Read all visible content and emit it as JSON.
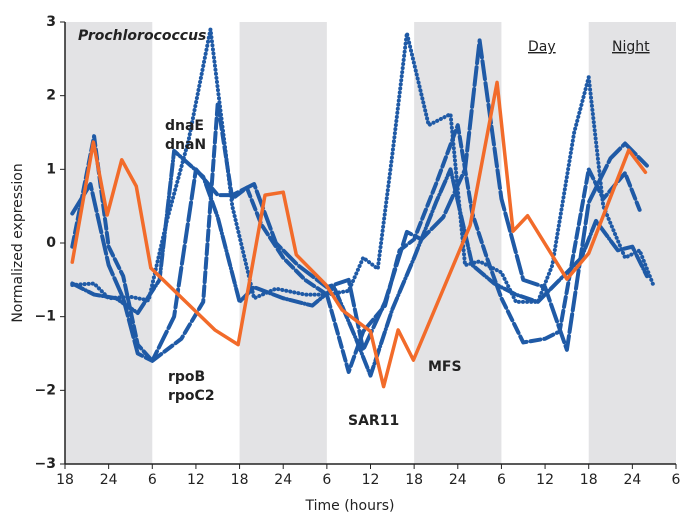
{
  "chart_data": {
    "type": "line",
    "xlabel": "Time (hours)",
    "ylabel": "Normalized expression",
    "xlim": [
      0,
      84
    ],
    "ylim": [
      -3,
      3
    ],
    "xticks": [
      {
        "value": 0,
        "label": "18"
      },
      {
        "value": 6,
        "label": "24"
      },
      {
        "value": 12,
        "label": "6"
      },
      {
        "value": 18,
        "label": "12"
      },
      {
        "value": 24,
        "label": "18"
      },
      {
        "value": 30,
        "label": "24"
      },
      {
        "value": 36,
        "label": "6"
      },
      {
        "value": 42,
        "label": "12"
      },
      {
        "value": 48,
        "label": "18"
      },
      {
        "value": 54,
        "label": "24"
      },
      {
        "value": 60,
        "label": "6"
      },
      {
        "value": 66,
        "label": "12"
      },
      {
        "value": 72,
        "label": "18"
      },
      {
        "value": 78,
        "label": "24"
      },
      {
        "value": 84,
        "label": "6"
      }
    ],
    "yticks": [
      {
        "value": -3,
        "label": "−3"
      },
      {
        "value": -2,
        "label": "−2"
      },
      {
        "value": -1,
        "label": "−1"
      },
      0,
      1,
      2,
      3
    ],
    "shaded_regions": [
      [
        0,
        12
      ],
      [
        24,
        36
      ],
      [
        48,
        60
      ],
      [
        72,
        84
      ]
    ],
    "shade_color": "#e3e3e5",
    "annotations": [
      {
        "text": "Prochlorococcus",
        "color": "#1f5aa6"
      },
      {
        "text": "dnaE",
        "color": "#1f5aa6"
      },
      {
        "text": "dnaN",
        "color": "#1f5aa6"
      },
      {
        "text": "rpoB",
        "color": "#1f5aa6"
      },
      {
        "text": "rpoC2",
        "color": "#1f5aa6"
      },
      {
        "text": "MFS",
        "color": "#f26b2a"
      },
      {
        "text": "SAR11",
        "color": "#f26b2a"
      },
      {
        "text": "Day",
        "color": "#222222"
      },
      {
        "text": "Night",
        "color": "#222222"
      }
    ],
    "series": [
      {
        "color": "#1f5aa6",
        "style": "dotted",
        "x": [
          1,
          4,
          6,
          9,
          11.5,
          14,
          17,
          20,
          23,
          26,
          29,
          33,
          36,
          39,
          41,
          43,
          45,
          47,
          50,
          53,
          55,
          57,
          60,
          62,
          65,
          67,
          70,
          72,
          74,
          77,
          79,
          81
        ],
        "values": [
          -0.57,
          -0.55,
          -0.75,
          -0.73,
          -0.78,
          0.3,
          1.4,
          2.9,
          0.5,
          -0.75,
          -0.62,
          -0.7,
          -0.7,
          -0.65,
          -0.2,
          -0.35,
          1.2,
          2.85,
          1.6,
          1.75,
          -0.3,
          -0.25,
          -0.4,
          -0.8,
          -0.8,
          -0.3,
          1.5,
          2.25,
          0.5,
          -0.2,
          -0.1,
          -0.6
        ]
      },
      {
        "color": "#1f5aa6",
        "style": "dashed",
        "x": [
          1,
          4,
          6,
          8,
          10,
          12,
          16,
          19,
          21,
          23,
          25,
          27,
          30,
          33,
          36,
          39,
          41,
          44,
          46,
          48,
          51,
          54,
          56,
          58,
          60,
          63,
          66,
          68,
          72,
          74,
          77,
          79
        ],
        "values": [
          -0.05,
          1.45,
          -0.05,
          -0.45,
          -1.38,
          -1.6,
          -1.3,
          -0.8,
          1.9,
          0.6,
          0.75,
          0.25,
          -0.2,
          -0.5,
          -0.7,
          -1.75,
          -1.2,
          -0.85,
          -0.1,
          0.05,
          0.8,
          1.6,
          0.4,
          -0.2,
          -0.75,
          -1.35,
          -1.3,
          -1.2,
          1.0,
          0.6,
          0.95,
          0.45
        ]
      },
      {
        "color": "#1f5aa6",
        "style": "longdash",
        "x": [
          1,
          3.5,
          6,
          8,
          10,
          12,
          15,
          18,
          21,
          23,
          26,
          29,
          32,
          36,
          39,
          41,
          44,
          47,
          49,
          52,
          55,
          57,
          60,
          63,
          66,
          69,
          72,
          75,
          77,
          80
        ],
        "values": [
          0.4,
          0.8,
          -0.3,
          -0.75,
          -1.5,
          -1.6,
          -1.0,
          1.0,
          0.65,
          0.65,
          0.8,
          0.0,
          -0.3,
          -0.6,
          -0.5,
          -1.45,
          -0.8,
          0.15,
          0.05,
          0.35,
          1.0,
          2.75,
          0.6,
          -0.5,
          -0.6,
          -1.45,
          0.55,
          1.15,
          1.35,
          1.05
        ]
      },
      {
        "color": "#1f5aa6",
        "style": "dashdot",
        "x": [
          1,
          4,
          7,
          10,
          13,
          15,
          19,
          21,
          24,
          26,
          30,
          34,
          37,
          40,
          42,
          45,
          48,
          51,
          53,
          56,
          59,
          62,
          65,
          68,
          71,
          73,
          76,
          78,
          80
        ],
        "values": [
          -0.55,
          -0.7,
          -0.75,
          -0.95,
          -0.5,
          1.25,
          0.9,
          0.35,
          -0.8,
          -0.6,
          -0.75,
          -0.85,
          -0.6,
          -1.3,
          -1.8,
          -0.9,
          -0.2,
          0.55,
          1.0,
          -0.3,
          -0.55,
          -0.7,
          -0.8,
          -0.5,
          -0.2,
          0.3,
          -0.1,
          -0.05,
          -0.45
        ]
      },
      {
        "color": "#f26b2a",
        "style": "solid",
        "x": [
          1,
          3.9,
          5.8,
          7.8,
          9.8,
          11.8,
          20.6,
          23.8,
          27.5,
          30,
          31.8,
          35.9,
          38.1,
          42,
          43.8,
          45.8,
          47.9,
          55.7,
          59.4,
          61.6,
          63.6,
          69,
          72,
          77.5,
          79.8
        ],
        "values": [
          -0.26,
          1.37,
          0.38,
          1.13,
          0.77,
          -0.34,
          -1.18,
          -1.38,
          0.65,
          0.69,
          -0.16,
          -0.57,
          -0.91,
          -1.2,
          -1.95,
          -1.18,
          -1.59,
          0.24,
          2.18,
          0.16,
          0.37,
          -0.49,
          -0.14,
          1.26,
          0.96
        ]
      }
    ]
  }
}
